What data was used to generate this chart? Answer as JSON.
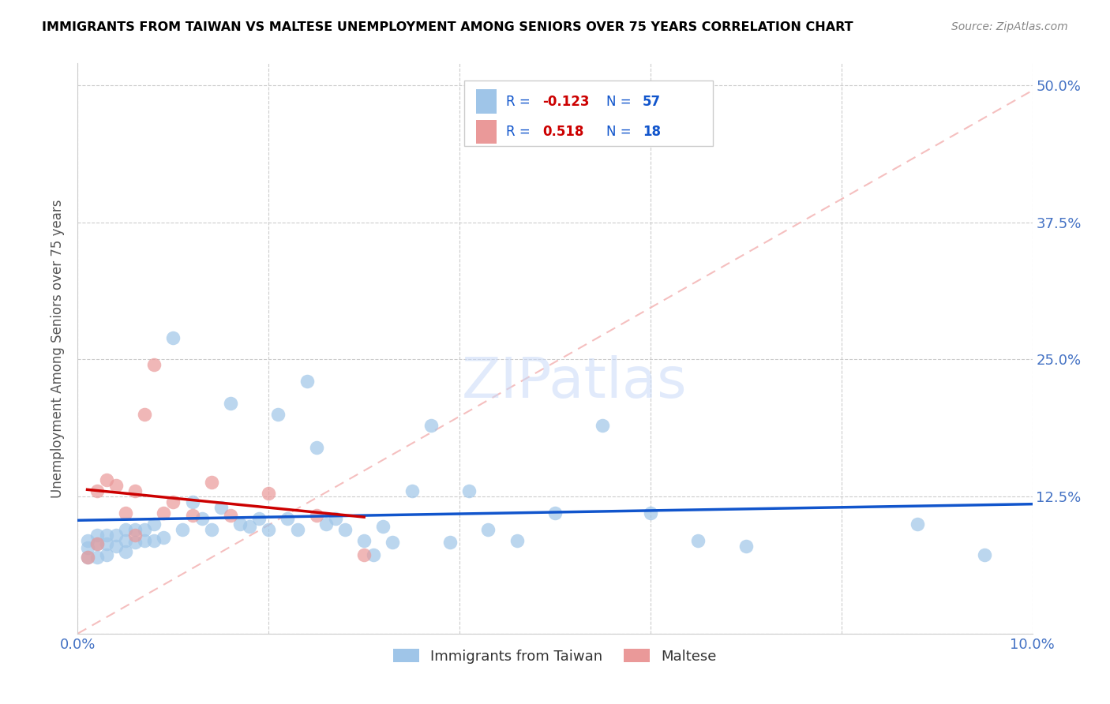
{
  "title": "IMMIGRANTS FROM TAIWAN VS MALTESE UNEMPLOYMENT AMONG SENIORS OVER 75 YEARS CORRELATION CHART",
  "source": "Source: ZipAtlas.com",
  "ylabel": "Unemployment Among Seniors over 75 years",
  "xlim": [
    0.0,
    0.1
  ],
  "ylim": [
    0.0,
    0.52
  ],
  "xtick_vals": [
    0.0,
    0.02,
    0.04,
    0.06,
    0.08,
    0.1
  ],
  "xtick_labels": [
    "0.0%",
    "",
    "",
    "",
    "",
    "10.0%"
  ],
  "ytick_vals": [
    0.0,
    0.125,
    0.25,
    0.375,
    0.5
  ],
  "ytick_labels_right": [
    "",
    "12.5%",
    "25.0%",
    "37.5%",
    "50.0%"
  ],
  "R_taiwan": -0.123,
  "N_taiwan": 57,
  "R_maltese": 0.518,
  "N_maltese": 18,
  "blue_color": "#9fc5e8",
  "pink_color": "#ea9999",
  "blue_line_color": "#1155cc",
  "pink_line_color": "#cc0000",
  "dashed_color": "#f4b8b8",
  "taiwan_x": [
    0.001,
    0.001,
    0.001,
    0.002,
    0.002,
    0.002,
    0.003,
    0.003,
    0.003,
    0.004,
    0.004,
    0.005,
    0.005,
    0.005,
    0.006,
    0.006,
    0.007,
    0.007,
    0.008,
    0.008,
    0.009,
    0.01,
    0.011,
    0.012,
    0.013,
    0.014,
    0.015,
    0.016,
    0.017,
    0.018,
    0.019,
    0.02,
    0.021,
    0.022,
    0.023,
    0.024,
    0.025,
    0.026,
    0.027,
    0.028,
    0.03,
    0.031,
    0.032,
    0.033,
    0.035,
    0.037,
    0.039,
    0.041,
    0.043,
    0.046,
    0.05,
    0.055,
    0.06,
    0.065,
    0.07,
    0.088,
    0.095
  ],
  "taiwan_y": [
    0.085,
    0.078,
    0.07,
    0.09,
    0.082,
    0.07,
    0.09,
    0.082,
    0.072,
    0.09,
    0.08,
    0.095,
    0.085,
    0.075,
    0.095,
    0.083,
    0.095,
    0.085,
    0.1,
    0.085,
    0.088,
    0.27,
    0.095,
    0.12,
    0.105,
    0.095,
    0.115,
    0.21,
    0.1,
    0.098,
    0.105,
    0.095,
    0.2,
    0.105,
    0.095,
    0.23,
    0.17,
    0.1,
    0.105,
    0.095,
    0.085,
    0.072,
    0.098,
    0.083,
    0.13,
    0.19,
    0.083,
    0.13,
    0.095,
    0.085,
    0.11,
    0.19,
    0.11,
    0.085,
    0.08,
    0.1,
    0.072
  ],
  "maltese_x": [
    0.001,
    0.002,
    0.002,
    0.003,
    0.004,
    0.005,
    0.006,
    0.006,
    0.007,
    0.008,
    0.009,
    0.01,
    0.012,
    0.014,
    0.016,
    0.02,
    0.025,
    0.03
  ],
  "maltese_y": [
    0.07,
    0.082,
    0.13,
    0.14,
    0.135,
    0.11,
    0.09,
    0.13,
    0.2,
    0.245,
    0.11,
    0.12,
    0.108,
    0.138,
    0.108,
    0.128,
    0.108,
    0.072
  ],
  "watermark_text": "ZIPatlas",
  "watermark_color": "#c9daf8",
  "legend_entries": [
    {
      "color": "#9fc5e8",
      "R": "-0.123",
      "N": "57",
      "R_color": "#cc0000",
      "N_color": "#1155cc"
    },
    {
      "color": "#ea9999",
      "R": "0.518",
      "N": "18",
      "R_color": "#cc0000",
      "N_color": "#1155cc"
    }
  ]
}
